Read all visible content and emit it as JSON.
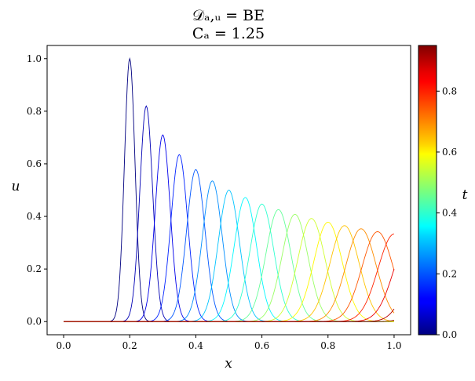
{
  "chart_data": {
    "type": "line",
    "title_lines": [
      "𝒟ₐ,ᵤ = BE",
      "Cₐ = 1.25"
    ],
    "xlabel": "x",
    "ylabel": "u",
    "colorbar_label": "t",
    "xlim": [
      -0.05,
      1.05
    ],
    "ylim": [
      -0.05,
      1.05
    ],
    "xticks": [
      0.0,
      0.2,
      0.4,
      0.6,
      0.8,
      1.0
    ],
    "yticks": [
      0.0,
      0.2,
      0.4,
      0.6,
      0.8,
      1.0
    ],
    "x_tick_labels": [
      "0.0",
      "0.2",
      "0.4",
      "0.6",
      "0.8",
      "1.0"
    ],
    "y_tick_labels": [
      "0.0",
      "0.2",
      "0.4",
      "0.6",
      "0.8",
      "1.0"
    ],
    "colorbar_range": [
      0.0,
      0.95
    ],
    "colorbar_ticks": [
      0.0,
      0.2,
      0.4,
      0.6,
      0.8
    ],
    "colorbar_tick_labels": [
      "0.0",
      "0.2",
      "0.4",
      "0.6",
      "0.8"
    ],
    "colormap": "jet",
    "grid": false,
    "series": [
      {
        "t": 0.0,
        "center": 0.2,
        "amplitude": 1.0,
        "width": 0.016
      },
      {
        "t": 0.05,
        "center": 0.25,
        "amplitude": 0.82,
        "width": 0.0195
      },
      {
        "t": 0.1,
        "center": 0.3,
        "amplitude": 0.71,
        "width": 0.0225
      },
      {
        "t": 0.15,
        "center": 0.35,
        "amplitude": 0.635,
        "width": 0.0252
      },
      {
        "t": 0.2,
        "center": 0.4,
        "amplitude": 0.578,
        "width": 0.0277
      },
      {
        "t": 0.25,
        "center": 0.45,
        "amplitude": 0.535,
        "width": 0.03
      },
      {
        "t": 0.3,
        "center": 0.5,
        "amplitude": 0.5,
        "width": 0.032
      },
      {
        "t": 0.35,
        "center": 0.55,
        "amplitude": 0.472,
        "width": 0.034
      },
      {
        "t": 0.4,
        "center": 0.6,
        "amplitude": 0.447,
        "width": 0.036
      },
      {
        "t": 0.45,
        "center": 0.65,
        "amplitude": 0.426,
        "width": 0.0378
      },
      {
        "t": 0.5,
        "center": 0.7,
        "amplitude": 0.408,
        "width": 0.0395
      },
      {
        "t": 0.55,
        "center": 0.75,
        "amplitude": 0.392,
        "width": 0.0412
      },
      {
        "t": 0.6,
        "center": 0.8,
        "amplitude": 0.378,
        "width": 0.0428
      },
      {
        "t": 0.65,
        "center": 0.85,
        "amplitude": 0.365,
        "width": 0.0444
      },
      {
        "t": 0.7,
        "center": 0.9,
        "amplitude": 0.353,
        "width": 0.0458
      },
      {
        "t": 0.75,
        "center": 0.95,
        "amplitude": 0.342,
        "width": 0.0472
      },
      {
        "t": 0.8,
        "center": 1.0,
        "amplitude": 0.333,
        "width": 0.0485
      },
      {
        "t": 0.85,
        "center": 1.05,
        "amplitude": 0.33,
        "width": 0.05
      },
      {
        "t": 0.9,
        "center": 1.1,
        "amplitude": 0.33,
        "width": 0.051
      },
      {
        "t": 0.95,
        "center": 1.15,
        "amplitude": 0.325,
        "width": 0.052
      }
    ]
  }
}
